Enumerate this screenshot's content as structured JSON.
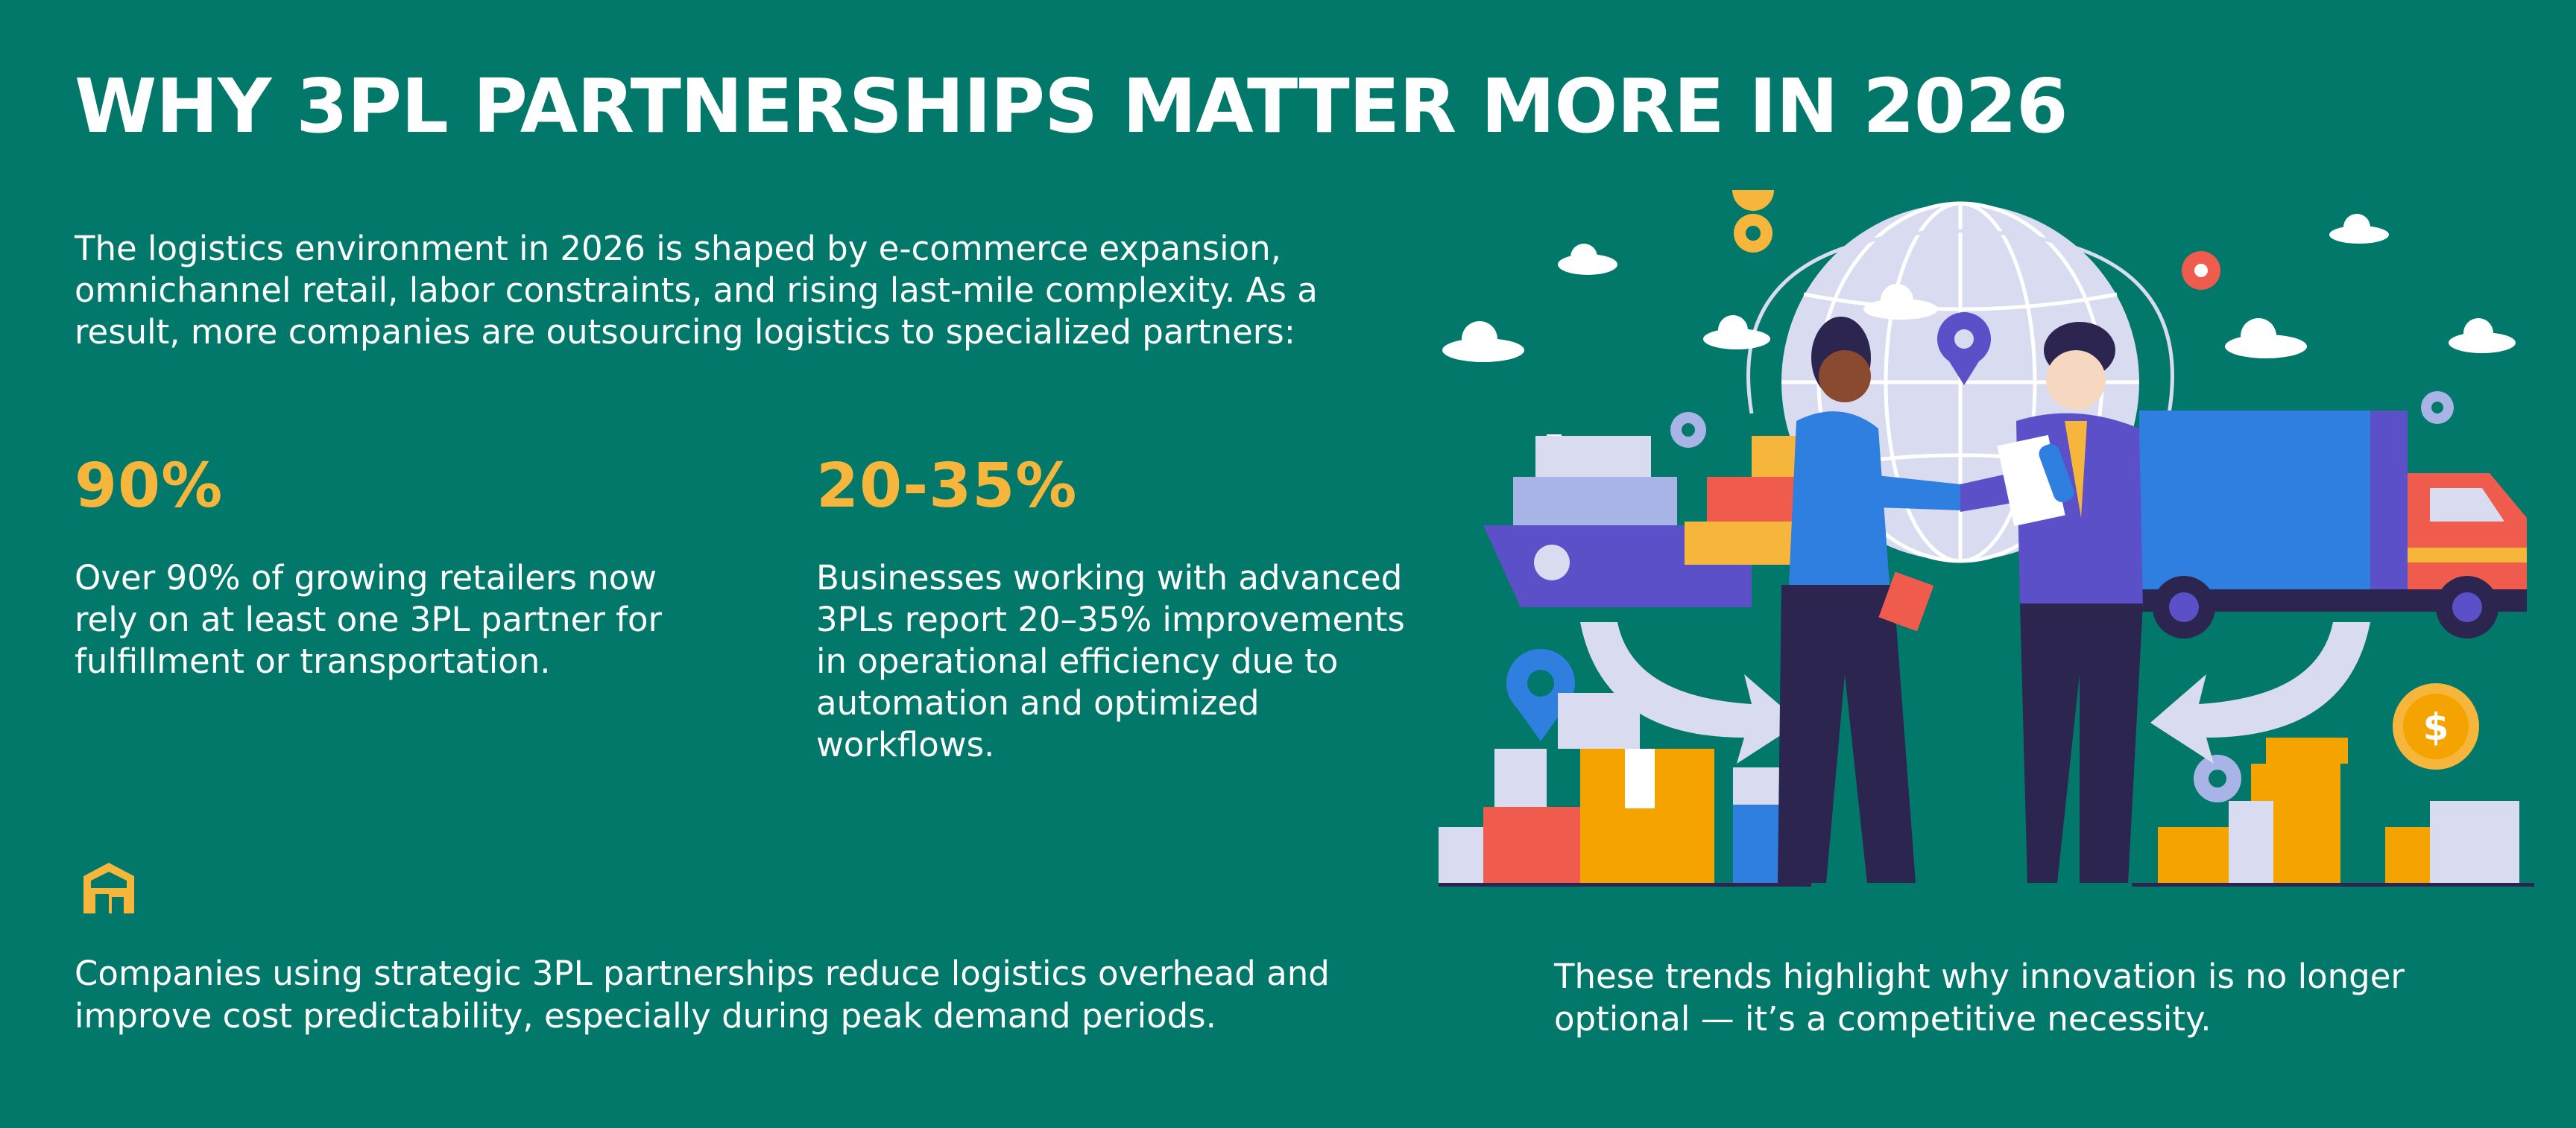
{
  "title": "WHY 3PL PARTNERSHIPS MATTER MORE IN 2026",
  "intro": "The logistics environment in 2026 is shaped by e-commerce expansion, omnichannel retail, labor constraints, and rising last-mile complexity. As a result, more companies are outsourcing logistics to specialized partners:",
  "stats": [
    {
      "value": "90%",
      "text": "Over 90% of growing retailers now rely on at least one 3PL partner for fulfillment or transportation."
    },
    {
      "value": "20-35%",
      "text": "Businesses working with advanced 3PLs report 20–35% improvements in operational efficiency due to automation and optimized workflows."
    }
  ],
  "bottom_left": "Companies using strategic 3PL partnerships reduce logistics overhead and improve cost predictability, especially during peak demand periods.",
  "bottom_right": "These trends highlight why innovation is no longer optional — it’s a competitive necessity.",
  "coin_symbol": "$",
  "colors": {
    "background": "#01786a",
    "accent": "#f6b63c",
    "text": "#ffffff"
  },
  "icons": [
    "warehouse-box-icon",
    "globe-icon",
    "location-pin-icon",
    "cargo-ship-icon",
    "delivery-truck-icon",
    "coin-icon",
    "cloud-icon"
  ]
}
